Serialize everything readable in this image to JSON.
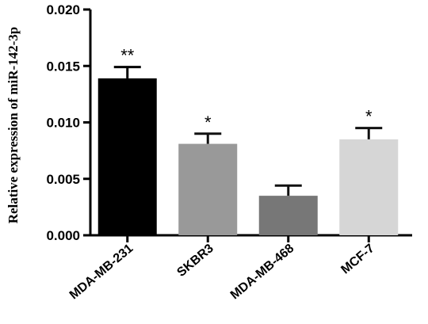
{
  "chart_data": {
    "type": "bar",
    "title": "",
    "xlabel": "",
    "ylabel": "Relative expression of miR-142-3p",
    "ylim": [
      0,
      0.02
    ],
    "yticks": [
      "0.000",
      "0.005",
      "0.010",
      "0.015",
      "0.020"
    ],
    "ytick_values": [
      0,
      0.005,
      0.01,
      0.015,
      0.02
    ],
    "categories": [
      "MDA-MB-231",
      "SKBR3",
      "MDA-MB-468",
      "MCF-7"
    ],
    "values": [
      0.0139,
      0.0081,
      0.0035,
      0.0085
    ],
    "errors": [
      0.001,
      0.0009,
      0.0009,
      0.001
    ],
    "significance": [
      "**",
      "*",
      "",
      "*"
    ],
    "colors": [
      "#000000",
      "#999999",
      "#777777",
      "#d6d6d6"
    ],
    "grid": false,
    "legend": "none"
  }
}
